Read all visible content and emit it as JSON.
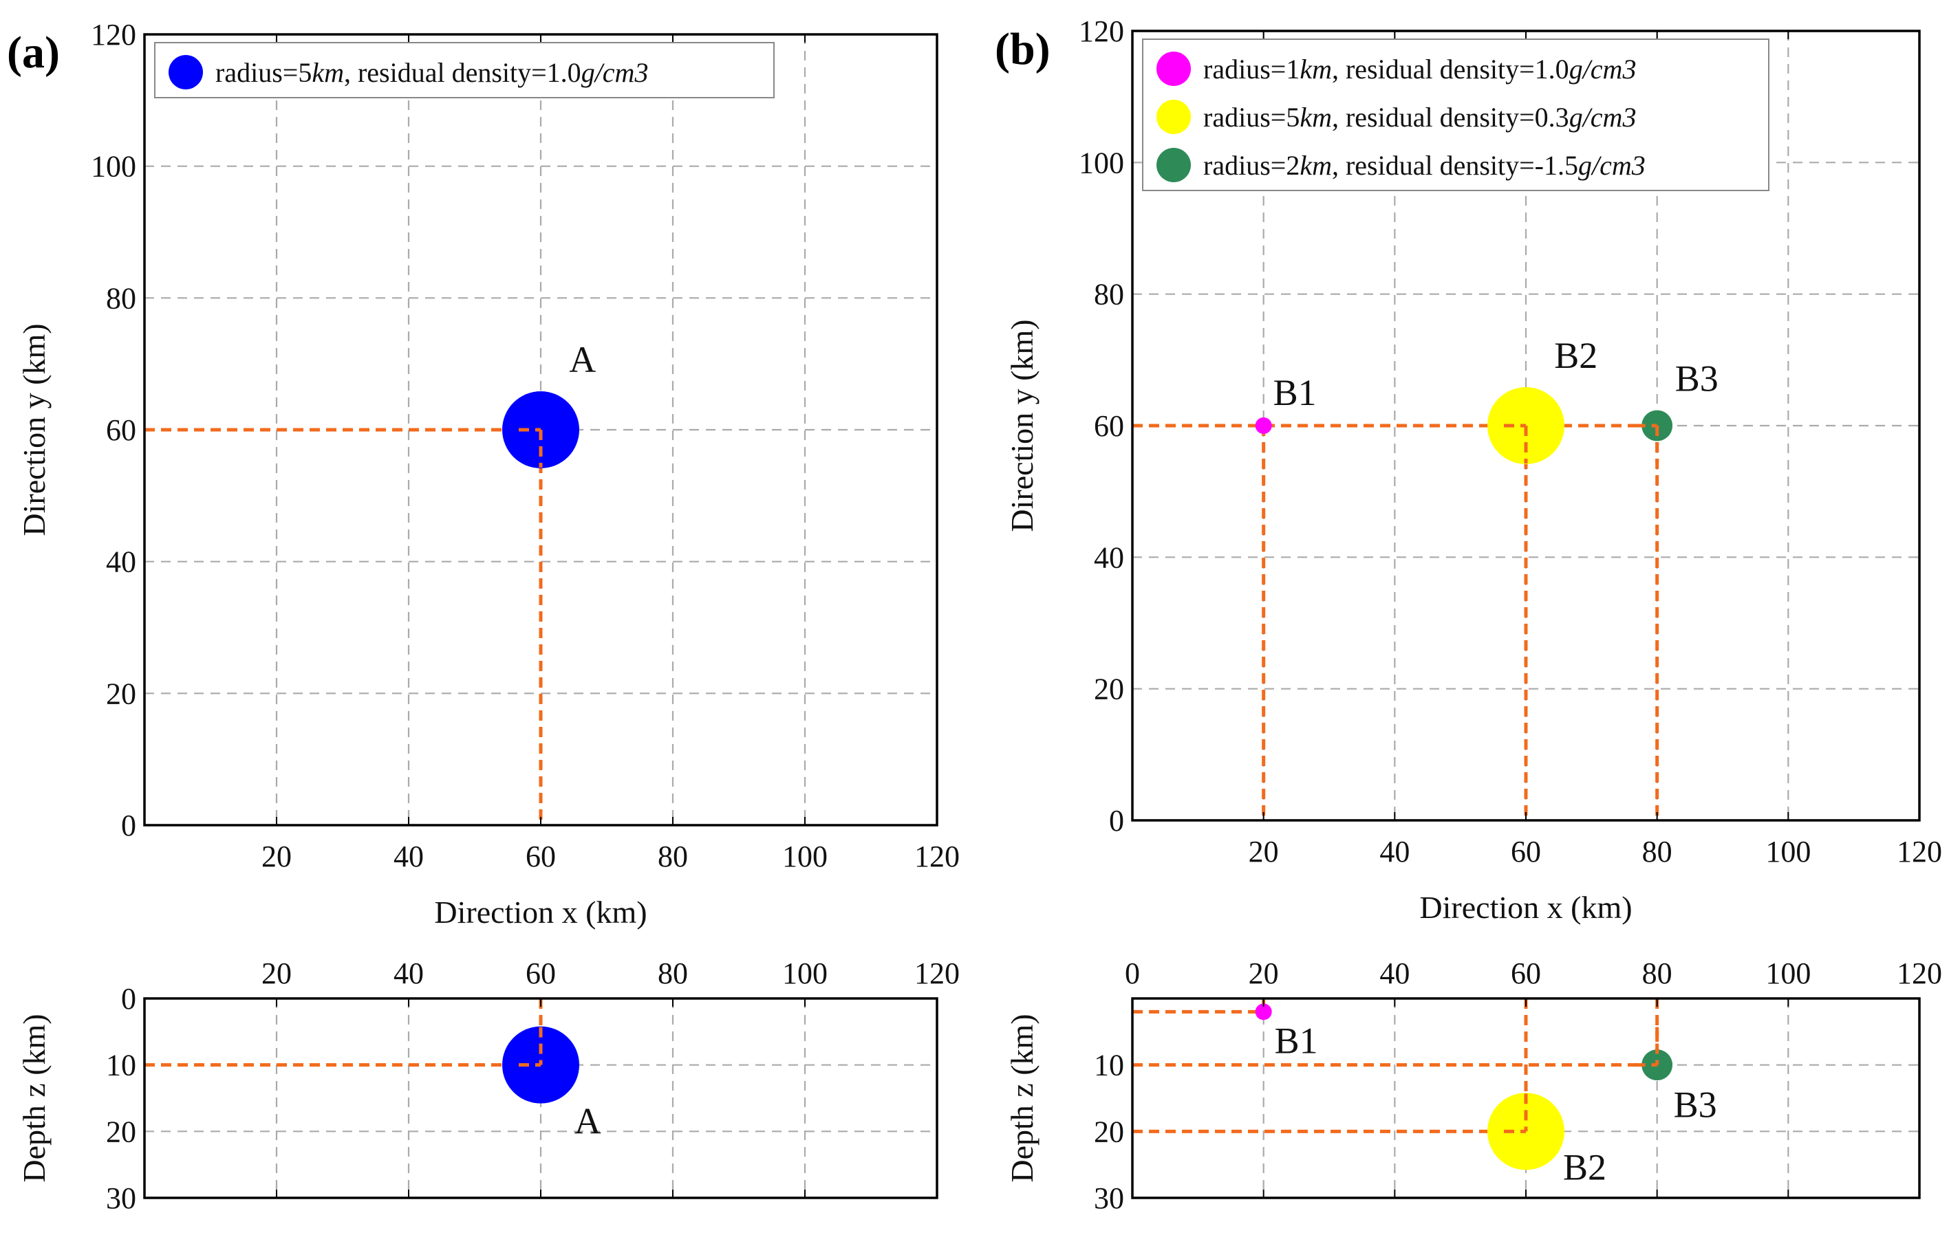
{
  "chart_data": [
    {
      "type": "scatter",
      "panel": "(a)",
      "view": "plan",
      "xlabel": "Direction x (km)",
      "ylabel": "Direction y (km)",
      "xlim": [
        0,
        120
      ],
      "ylim": [
        0,
        120
      ],
      "xticks": [
        "20",
        "40",
        "60",
        "80",
        "100",
        "120"
      ],
      "yticks": [
        "0",
        "20",
        "40",
        "60",
        "80",
        "100",
        "120"
      ],
      "grid": true,
      "legend_position": "top-left",
      "series": [
        {
          "name": "A",
          "x": 60,
          "y": 60,
          "z": 10,
          "radius_km": 5,
          "color": "#0000ff",
          "legend": "radius=5km, residual density=1.0g/cm3"
        }
      ]
    },
    {
      "type": "scatter",
      "panel": "(a)",
      "view": "section",
      "xlabel": "",
      "ylabel": "Depth z (km)",
      "xlim": [
        0,
        120
      ],
      "zlim": [
        0,
        30
      ],
      "xticks": [
        "20",
        "40",
        "60",
        "80",
        "100",
        "120"
      ],
      "zticks": [
        "0",
        "10",
        "20",
        "30"
      ],
      "grid": true,
      "series": [
        {
          "name": "A",
          "x": 60,
          "z": 10,
          "radius_km": 5,
          "color": "#0000ff"
        }
      ]
    },
    {
      "type": "scatter",
      "panel": "(b)",
      "view": "plan",
      "xlabel": "Direction x (km)",
      "ylabel": "Direction y (km)",
      "xlim": [
        0,
        120
      ],
      "ylim": [
        0,
        120
      ],
      "xticks": [
        "20",
        "40",
        "60",
        "80",
        "100",
        "120"
      ],
      "yticks": [
        "0",
        "20",
        "40",
        "60",
        "80",
        "100",
        "120"
      ],
      "grid": true,
      "legend_position": "top-left",
      "series": [
        {
          "name": "B1",
          "x": 20,
          "y": 60,
          "z": 2,
          "radius_km": 1,
          "color": "#ff00ff",
          "legend": "radius=1km, residual density=1.0g/cm3"
        },
        {
          "name": "B2",
          "x": 60,
          "y": 60,
          "z": 20,
          "radius_km": 5,
          "color": "#ffff00",
          "legend": "radius=5km, residual density=0.3g/cm3"
        },
        {
          "name": "B3",
          "x": 80,
          "y": 60,
          "z": 10,
          "radius_km": 2,
          "color": "#2e8b57",
          "legend": "radius=2km, residual density=-1.5g/cm3"
        }
      ]
    },
    {
      "type": "scatter",
      "panel": "(b)",
      "view": "section",
      "xlabel": "",
      "ylabel": "Depth z (km)",
      "xlim": [
        0,
        120
      ],
      "zlim": [
        0,
        30
      ],
      "xticks": [
        "0",
        "20",
        "40",
        "60",
        "80",
        "100",
        "120"
      ],
      "zticks": [
        "10",
        "20",
        "30"
      ],
      "grid": true,
      "series": [
        {
          "name": "B1",
          "x": 20,
          "z": 2,
          "radius_km": 1,
          "color": "#ff00ff"
        },
        {
          "name": "B2",
          "x": 60,
          "z": 20,
          "radius_km": 5,
          "color": "#ffff00"
        },
        {
          "name": "B3",
          "x": 80,
          "z": 10,
          "radius_km": 2,
          "color": "#2e8b57"
        }
      ]
    }
  ],
  "figure": {
    "guide_color": "#f26b1d",
    "legend_segments": {
      "a": [
        [
          "radius=5",
          "km",
          ", residual density=1.0",
          "g/cm3"
        ]
      ],
      "b": [
        [
          "radius=1",
          "km",
          ", residual density=1.0",
          "g/cm3"
        ],
        [
          "radius=5",
          "km",
          ", residual density=0.3",
          "g/cm3"
        ],
        [
          "radius=2",
          "km",
          ", residual density=-1.5",
          "g/cm3"
        ]
      ]
    }
  }
}
